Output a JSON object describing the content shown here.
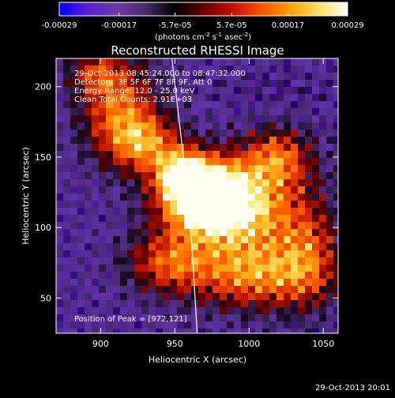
{
  "chart_data": {
    "type": "heatmap",
    "title": "Reconstructed RHESSI Image",
    "xlabel": "Heliocentric X (arcsec)",
    "ylabel": "Heliocentric Y (arcsec)",
    "xlim": [
      870,
      1060
    ],
    "ylim": [
      25,
      220
    ],
    "xticks": [
      900,
      950,
      1000,
      1050
    ],
    "yticks": [
      50,
      100,
      150,
      200
    ],
    "colorbar": {
      "range": [
        -0.00029,
        0.00029
      ],
      "tick_values": [
        -0.00029,
        -0.00017,
        -5.7e-05,
        5.7e-05,
        0.00017,
        0.00029
      ],
      "tick_labels": [
        "-0.00029",
        "-0.00017",
        "-5.7e-05",
        "5.7e-05",
        "0.00017",
        "0.00029"
      ],
      "unit_main": "(photons cm",
      "unit_exp1": "-2",
      "unit_mid1": " s",
      "unit_exp2": "-1",
      "unit_mid2": " asec",
      "unit_exp3": "-2",
      "unit_end": ")",
      "colors": [
        "#0000ff",
        "#5a1fd0",
        "#6a3aa8",
        "#4a2a6a",
        "#000000",
        "#6a0000",
        "#c01000",
        "#ff5000",
        "#ffa000",
        "#ffe060",
        "#ffffff"
      ]
    },
    "info_lines": [
      "29-Oct-2013 08:45:24.000 to 08:47:32.000",
      "Detectors: 3F 5F 6F 7F 8F 9F, Att 0",
      "Energy Range: 12.0 - 25.0 keV",
      "Clean    Total Counts: 2.91E+03"
    ],
    "peak": {
      "x": 972,
      "y": 121,
      "label": "Position of Peak = [972,121]"
    },
    "limb_line": {
      "x": [
        948,
        953,
        958,
        962,
        965
      ],
      "y": [
        220,
        175,
        130,
        80,
        25
      ]
    },
    "sources": [
      {
        "x": 972,
        "y": 121,
        "sx": 22,
        "sy": 18,
        "amp": 1.0
      },
      {
        "x": 955,
        "y": 138,
        "sx": 12,
        "sy": 12,
        "amp": 0.6
      },
      {
        "x": 1000,
        "y": 110,
        "sx": 30,
        "sy": 28,
        "amp": 0.55
      },
      {
        "x": 1020,
        "y": 150,
        "sx": 15,
        "sy": 14,
        "amp": 0.45
      },
      {
        "x": 1005,
        "y": 65,
        "sx": 30,
        "sy": 16,
        "amp": 0.5
      },
      {
        "x": 945,
        "y": 75,
        "sx": 20,
        "sy": 15,
        "amp": 0.45
      },
      {
        "x": 912,
        "y": 185,
        "sx": 18,
        "sy": 25,
        "amp": 0.55
      },
      {
        "x": 930,
        "y": 160,
        "sx": 16,
        "sy": 14,
        "amp": 0.5
      },
      {
        "x": 1040,
        "y": 80,
        "sx": 14,
        "sy": 25,
        "amp": 0.35
      },
      {
        "x": 895,
        "y": 210,
        "sx": 12,
        "sy": 10,
        "amp": 0.3
      }
    ],
    "timestamp": "29-Oct-2013 20:01"
  }
}
